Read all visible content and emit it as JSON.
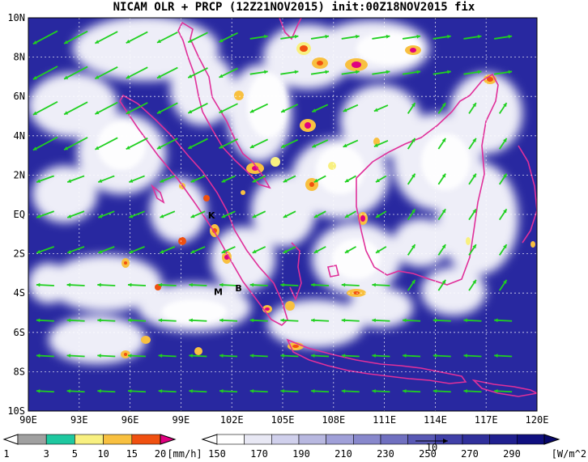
{
  "title": "NICAM OLR + PRCP (12Z21NOV2015) init:00Z18NOV2015 fix",
  "axes": {
    "lon_ticks": [
      "90E",
      "93E",
      "96E",
      "99E",
      "102E",
      "105E",
      "108E",
      "111E",
      "114E",
      "117E",
      "120E"
    ],
    "lat_ticks": [
      "10N",
      "8N",
      "6N",
      "4N",
      "2N",
      "EQ",
      "2S",
      "4S",
      "6S",
      "8S",
      "10S"
    ]
  },
  "markers": [
    {
      "label": "K",
      "lon": 100.8,
      "lat": -0.2
    },
    {
      "label": "M",
      "lon": 101.2,
      "lat": -4.1
    },
    {
      "label": "B",
      "lon": 102.4,
      "lat": -3.9
    }
  ],
  "precip_colorbar": {
    "labels": [
      "1",
      "3",
      "5",
      "10",
      "15",
      "20"
    ],
    "unit": "[mm/h]",
    "colors": [
      "#a0a0a0",
      "#1ec8a0",
      "#f8f080",
      "#f8c040",
      "#f05010",
      "#e00080"
    ]
  },
  "olr_colorbar": {
    "labels": [
      "150",
      "170",
      "190",
      "210",
      "230",
      "250",
      "270",
      "290"
    ],
    "unit": "[W/m^2]",
    "colors": [
      "#ffffff",
      "#e8e8f4",
      "#d0d0ec",
      "#b8b8e0",
      "#a0a0d8",
      "#8888cc",
      "#7070c0",
      "#5858b4",
      "#4040a8",
      "#30309c",
      "#202090",
      "#101080"
    ]
  },
  "wind_ref_label": "10",
  "colors": {
    "ocean": "#2828a0",
    "coast": "#e0309a",
    "wind": "#20d020",
    "grid": "#ffffff"
  }
}
